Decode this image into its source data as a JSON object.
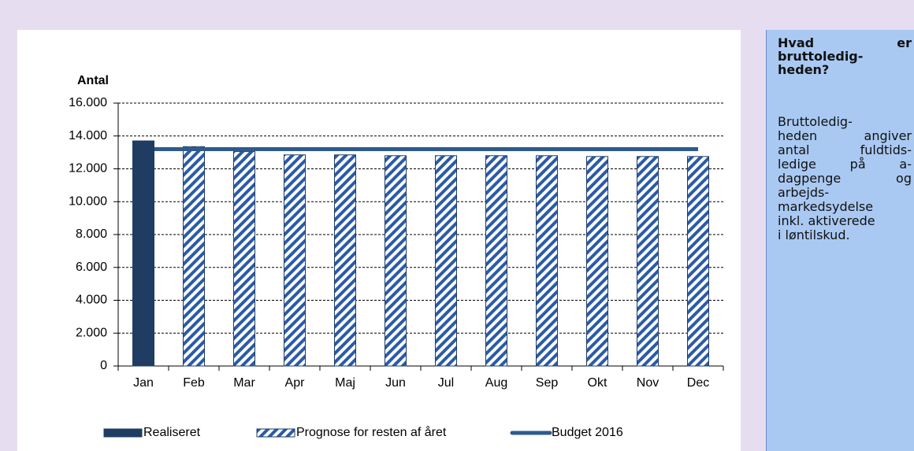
{
  "chart_data": {
    "type": "bar",
    "y_axis_label": "Antal",
    "categories": [
      "Jan",
      "Feb",
      "Mar",
      "Apr",
      "Maj",
      "Jun",
      "Jul",
      "Aug",
      "Sep",
      "Okt",
      "Nov",
      "Dec"
    ],
    "series": [
      {
        "name": "Realiseret",
        "type": "bar",
        "style": "solid",
        "color": "#1f3c63",
        "values": [
          13700,
          null,
          null,
          null,
          null,
          null,
          null,
          null,
          null,
          null,
          null,
          null
        ]
      },
      {
        "name": "Prognose for resten af året",
        "type": "bar",
        "style": "hatched",
        "color": "#2b5ba8",
        "values": [
          null,
          13350,
          13050,
          12850,
          12850,
          12800,
          12800,
          12800,
          12800,
          12750,
          12750,
          12750
        ]
      },
      {
        "name": "Budget 2016",
        "type": "line",
        "color": "#2f5b8c",
        "values": [
          13200,
          13200,
          13200,
          13200,
          13200,
          13200,
          13200,
          13200,
          13200,
          13200,
          13200,
          13200
        ]
      }
    ],
    "ylim": [
      0,
      16000
    ],
    "yticks": [
      0,
      {
        "value": 2000,
        "label": "2.000"
      },
      {
        "value": 4000,
        "label": "4.000"
      },
      {
        "value": 6000,
        "label": "6.000"
      },
      {
        "value": 8000,
        "label": "8.000"
      },
      {
        "value": 10000,
        "label": "10.000"
      },
      {
        "value": 12000,
        "label": "12.000"
      },
      {
        "value": 14000,
        "label": "14.000"
      },
      {
        "value": 16000,
        "label": "16.000"
      }
    ],
    "grid": true,
    "legend": "bottom"
  },
  "side_panel": {
    "title_lines": [
      "Hvad er",
      "bruttoledig-",
      "heden?"
    ],
    "body_lines": [
      "Bruttoledig-",
      "heden angiver",
      "antal fuldtids-",
      "ledige på a-",
      "dagpenge og",
      "arbejds-",
      "markedsydelse",
      "inkl. aktiverede",
      "i løntilskud."
    ]
  }
}
